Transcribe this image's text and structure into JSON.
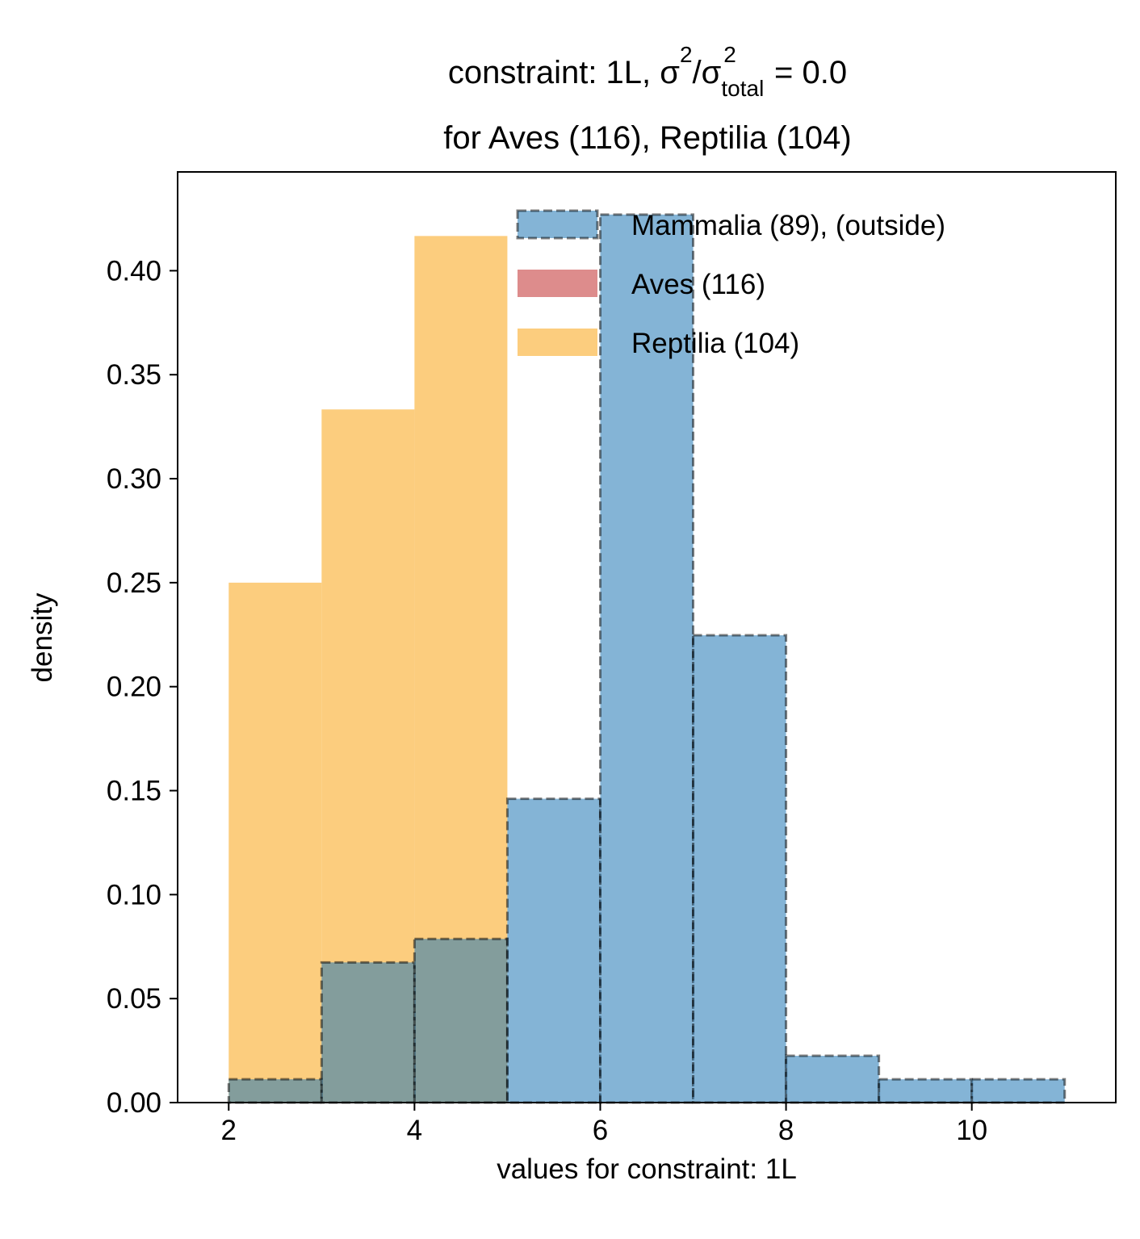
{
  "chart_data": {
    "type": "bar",
    "title": {
      "line1_prefix": "constraint: 1L, σ",
      "sup1": "2",
      "slash": "/σ",
      "sub": "total",
      "sup2": "2",
      "line1_suffix": " =  0.0",
      "line2": "for Aves (116), Reptilia (104)"
    },
    "xlabel": "values for constraint: 1L",
    "ylabel": "density",
    "xlim": [
      1.45,
      11.55
    ],
    "ylim": [
      0,
      0.4475
    ],
    "xticks": [
      2,
      4,
      6,
      8,
      10
    ],
    "yticks": [
      0.0,
      0.05,
      0.1,
      0.15,
      0.2,
      0.25,
      0.3,
      0.35,
      0.4
    ],
    "ytick_labels": [
      "0.00",
      "0.05",
      "0.10",
      "0.15",
      "0.20",
      "0.25",
      "0.30",
      "0.35",
      "0.40"
    ],
    "grid": false,
    "legend_position": "top-right",
    "series": [
      {
        "name": "Reptilia (104)",
        "color": "#fbc15e",
        "opacity": 0.8,
        "edge": "none",
        "bins": [
          [
            2,
            3,
            0.25
          ],
          [
            3,
            4,
            0.3333
          ],
          [
            4,
            5,
            0.4167
          ]
        ]
      },
      {
        "name": "Aves (116)",
        "color": "#d16666",
        "opacity": 0.75,
        "edge": "none",
        "bins": []
      },
      {
        "name": "Mammalia (89), (outside)",
        "color": "#1f77b4",
        "opacity": 0.55,
        "edge": "dashed",
        "edge_color": "#000000",
        "bins": [
          [
            2,
            3,
            0.0112
          ],
          [
            3,
            4,
            0.0674
          ],
          [
            4,
            5,
            0.0787
          ],
          [
            5,
            6,
            0.1461
          ],
          [
            6,
            7,
            0.427
          ],
          [
            7,
            8,
            0.2247
          ],
          [
            8,
            9,
            0.0225
          ],
          [
            9,
            10,
            0.0112
          ],
          [
            10,
            11,
            0.0112
          ]
        ]
      }
    ],
    "legend_order": [
      "Mammalia (89), (outside)",
      "Aves (116)",
      "Reptilia (104)"
    ]
  }
}
